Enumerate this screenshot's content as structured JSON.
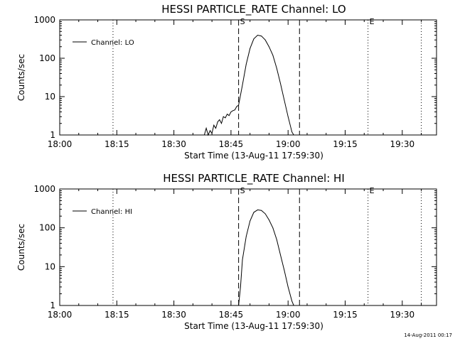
{
  "footer": {
    "timestamp": "14-Aug-2011 00:17"
  },
  "chart_data": [
    {
      "type": "line",
      "title": "HESSI PARTICLE_RATE Channel: LO",
      "xlabel": "Start Time (13-Aug-11 17:59:30)",
      "ylabel": "Counts/sec",
      "y_scale": "log",
      "xlim": [
        "18:00",
        "19:39"
      ],
      "ylim": [
        1,
        1000
      ],
      "x_tick_labels": [
        "18:00",
        "18:15",
        "18:30",
        "18:45",
        "19:00",
        "19:15",
        "19:30"
      ],
      "y_tick_labels": [
        "1",
        "10",
        "100",
        "1000"
      ],
      "legend": {
        "label": "Channel: LO",
        "position": "top-left"
      },
      "markers": [
        {
          "label": "S",
          "time": "18:47",
          "style": "dashed"
        },
        {
          "label": "E",
          "time": "19:21",
          "style": "dotted"
        }
      ],
      "vlines": [
        {
          "time": "18:14",
          "style": "dotted"
        },
        {
          "time": "18:47",
          "style": "dashed"
        },
        {
          "time": "19:03",
          "style": "dashed"
        },
        {
          "time": "19:21",
          "style": "dotted"
        },
        {
          "time": "19:35",
          "style": "dotted"
        }
      ],
      "series": [
        {
          "name": "Channel: LO",
          "x": [
            "18:38",
            "18:38:30",
            "18:39",
            "18:39:30",
            "18:40",
            "18:40:30",
            "18:41",
            "18:41:30",
            "18:42",
            "18:42:30",
            "18:43",
            "18:43:30",
            "18:44",
            "18:44:30",
            "18:45",
            "18:45:30",
            "18:46",
            "18:46:30",
            "18:47",
            "18:48",
            "18:49",
            "18:50",
            "18:51",
            "18:52",
            "18:53",
            "18:54",
            "18:55",
            "18:56",
            "18:57",
            "18:58",
            "18:59",
            "19:00",
            "19:01",
            "19:01:30"
          ],
          "y": [
            1,
            1.5,
            1,
            1.3,
            1.1,
            1.8,
            1.5,
            2.2,
            2.5,
            2,
            3,
            2.8,
            3.5,
            3.2,
            4,
            4.3,
            4.5,
            5.5,
            6,
            20,
            70,
            180,
            320,
            400,
            380,
            300,
            200,
            120,
            55,
            22,
            8,
            3,
            1.2,
            1
          ]
        }
      ]
    },
    {
      "type": "line",
      "title": "HESSI PARTICLE_RATE Channel: HI",
      "xlabel": "Start Time (13-Aug-11 17:59:30)",
      "ylabel": "Counts/sec",
      "y_scale": "log",
      "xlim": [
        "18:00",
        "19:39"
      ],
      "ylim": [
        1,
        1000
      ],
      "x_tick_labels": [
        "18:00",
        "18:15",
        "18:30",
        "18:45",
        "19:00",
        "19:15",
        "19:30"
      ],
      "y_tick_labels": [
        "1",
        "10",
        "100",
        "1000"
      ],
      "legend": {
        "label": "Channel: HI",
        "position": "top-left"
      },
      "markers": [
        {
          "label": "S",
          "time": "18:47",
          "style": "dashed"
        },
        {
          "label": "E",
          "time": "19:21",
          "style": "dotted"
        }
      ],
      "vlines": [
        {
          "time": "18:14",
          "style": "dotted"
        },
        {
          "time": "18:47",
          "style": "dashed"
        },
        {
          "time": "19:03",
          "style": "dashed"
        },
        {
          "time": "19:21",
          "style": "dotted"
        },
        {
          "time": "19:35",
          "style": "dotted"
        }
      ],
      "series": [
        {
          "name": "Channel: HI",
          "x": [
            "18:47",
            "18:47:30",
            "18:48",
            "18:49",
            "18:50",
            "18:51",
            "18:52",
            "18:53",
            "18:54",
            "18:55",
            "18:56",
            "18:57",
            "18:58",
            "18:59",
            "19:00",
            "19:01",
            "19:01:30"
          ],
          "y": [
            1,
            3,
            15,
            60,
            150,
            250,
            290,
            280,
            230,
            160,
            100,
            50,
            20,
            8,
            3,
            1.3,
            1
          ]
        }
      ]
    }
  ]
}
